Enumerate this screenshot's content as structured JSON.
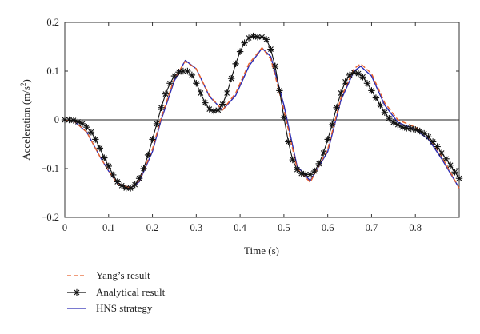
{
  "chart_data": {
    "type": "line",
    "xlabel": "Time (s)",
    "ylabel_main": "Acceleration (m/s",
    "ylabel_sup": "2",
    "ylabel_tail": ")",
    "xlim": [
      0,
      0.9
    ],
    "ylim": [
      -0.2,
      0.2
    ],
    "xticks": [
      0,
      0.1,
      0.2,
      0.3,
      0.4,
      0.5,
      0.6,
      0.7,
      0.8
    ],
    "xtick_labels": [
      "0",
      "0.1",
      "0.2",
      "0.3",
      "0.4",
      "0.5",
      "0.6",
      "0.7",
      "0.8"
    ],
    "yticks": [
      -0.2,
      -0.1,
      0,
      0.1,
      0.2
    ],
    "ytick_labels": [
      "−0.2",
      "−0.1",
      "0",
      "0.1",
      "0.2"
    ],
    "zero_line": true,
    "legend_position": "below",
    "series": [
      {
        "name": "Yang’s result",
        "style": "dashed",
        "color": "#e8622c",
        "x": [
          0,
          0.02,
          0.05,
          0.08,
          0.1,
          0.12,
          0.15,
          0.17,
          0.2,
          0.22,
          0.25,
          0.275,
          0.3,
          0.33,
          0.36,
          0.39,
          0.42,
          0.45,
          0.47,
          0.5,
          0.53,
          0.56,
          0.6,
          0.63,
          0.66,
          0.675,
          0.7,
          0.73,
          0.76,
          0.8,
          0.83,
          0.86,
          0.9
        ],
        "y": [
          0,
          -0.002,
          -0.025,
          -0.075,
          -0.105,
          -0.13,
          -0.14,
          -0.125,
          -0.06,
          0.005,
          0.085,
          0.12,
          0.105,
          0.05,
          0.02,
          0.055,
          0.115,
          0.148,
          0.125,
          0.02,
          -0.1,
          -0.128,
          -0.06,
          0.045,
          0.105,
          0.115,
          0.095,
          0.035,
          0.0,
          -0.015,
          -0.035,
          -0.075,
          -0.14
        ]
      },
      {
        "name": "Analytical result",
        "style": "star",
        "color": "#111111",
        "x": [
          0,
          0.01,
          0.02,
          0.03,
          0.04,
          0.05,
          0.06,
          0.07,
          0.08,
          0.09,
          0.1,
          0.11,
          0.12,
          0.13,
          0.14,
          0.15,
          0.16,
          0.17,
          0.18,
          0.19,
          0.2,
          0.21,
          0.22,
          0.23,
          0.24,
          0.25,
          0.26,
          0.27,
          0.28,
          0.29,
          0.3,
          0.31,
          0.32,
          0.33,
          0.34,
          0.35,
          0.36,
          0.37,
          0.38,
          0.39,
          0.4,
          0.41,
          0.42,
          0.43,
          0.44,
          0.45,
          0.46,
          0.47,
          0.48,
          0.49,
          0.5,
          0.51,
          0.52,
          0.53,
          0.54,
          0.55,
          0.56,
          0.57,
          0.58,
          0.59,
          0.6,
          0.61,
          0.62,
          0.63,
          0.64,
          0.65,
          0.66,
          0.67,
          0.68,
          0.69,
          0.7,
          0.71,
          0.72,
          0.73,
          0.74,
          0.75,
          0.76,
          0.77,
          0.78,
          0.79,
          0.8,
          0.81,
          0.82,
          0.83,
          0.84,
          0.85,
          0.86,
          0.87,
          0.88,
          0.89,
          0.9
        ],
        "y": [
          0,
          0,
          -0.001,
          -0.004,
          -0.008,
          -0.015,
          -0.025,
          -0.04,
          -0.058,
          -0.078,
          -0.095,
          -0.113,
          -0.127,
          -0.135,
          -0.14,
          -0.14,
          -0.133,
          -0.12,
          -0.1,
          -0.072,
          -0.04,
          -0.008,
          0.025,
          0.053,
          0.075,
          0.09,
          0.098,
          0.1,
          0.1,
          0.092,
          0.075,
          0.055,
          0.035,
          0.022,
          0.018,
          0.02,
          0.032,
          0.055,
          0.085,
          0.115,
          0.14,
          0.158,
          0.168,
          0.172,
          0.17,
          0.17,
          0.165,
          0.145,
          0.11,
          0.06,
          0.005,
          -0.045,
          -0.082,
          -0.102,
          -0.11,
          -0.112,
          -0.112,
          -0.105,
          -0.09,
          -0.068,
          -0.04,
          -0.01,
          0.025,
          0.055,
          0.078,
          0.092,
          0.097,
          0.095,
          0.088,
          0.075,
          0.06,
          0.045,
          0.03,
          0.015,
          0.003,
          -0.005,
          -0.01,
          -0.015,
          -0.017,
          -0.018,
          -0.02,
          -0.023,
          -0.028,
          -0.035,
          -0.045,
          -0.055,
          -0.068,
          -0.08,
          -0.093,
          -0.107,
          -0.12
        ]
      },
      {
        "name": "HNS strategy",
        "style": "solid",
        "color": "#2b2bb5",
        "x": [
          0,
          0.02,
          0.05,
          0.08,
          0.1,
          0.12,
          0.15,
          0.17,
          0.2,
          0.22,
          0.25,
          0.275,
          0.3,
          0.33,
          0.36,
          0.39,
          0.42,
          0.45,
          0.47,
          0.5,
          0.53,
          0.56,
          0.6,
          0.63,
          0.66,
          0.675,
          0.7,
          0.73,
          0.76,
          0.8,
          0.83,
          0.86,
          0.9
        ],
        "y": [
          0,
          -0.002,
          -0.025,
          -0.075,
          -0.105,
          -0.13,
          -0.14,
          -0.127,
          -0.065,
          0.0,
          0.08,
          0.122,
          0.105,
          0.048,
          0.02,
          0.05,
          0.11,
          0.147,
          0.13,
          0.03,
          -0.095,
          -0.125,
          -0.065,
          0.04,
          0.1,
          0.11,
          0.09,
          0.03,
          -0.005,
          -0.02,
          -0.04,
          -0.08,
          -0.14
        ]
      }
    ]
  }
}
